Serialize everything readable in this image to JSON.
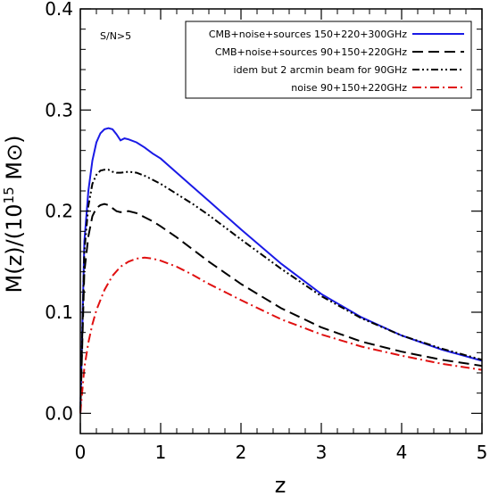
{
  "chart_data": {
    "type": "line",
    "xlabel": "z",
    "ylabel": "M(z)/(10",
    "ylabel_exp": "15",
    "ylabel_unit": " M⊙)",
    "annotation": "S/N>5",
    "xlim": [
      0,
      5
    ],
    "ylim": [
      -0.02,
      0.4
    ],
    "xticks": [
      0,
      1,
      2,
      3,
      4,
      5
    ],
    "xtick_labels": [
      "0",
      "1",
      "2",
      "3",
      "4",
      "5"
    ],
    "yticks": [
      0.0,
      0.1,
      0.2,
      0.3,
      0.4
    ],
    "ytick_labels": [
      "0.0",
      "0.1",
      "0.2",
      "0.3",
      "0.4"
    ],
    "grid": false,
    "legend_position": "top-right",
    "series": [
      {
        "name": "CMB+noise+sources 150+220+300GHz",
        "color": "#1a1ae6",
        "dash": "solid",
        "x": [
          0.0,
          0.05,
          0.1,
          0.15,
          0.2,
          0.25,
          0.3,
          0.35,
          0.4,
          0.45,
          0.5,
          0.55,
          0.6,
          0.7,
          0.8,
          0.9,
          1.0,
          1.2,
          1.4,
          1.6,
          1.8,
          2.0,
          2.5,
          3.0,
          3.5,
          4.0,
          4.5,
          5.0
        ],
        "y": [
          0.0,
          0.17,
          0.22,
          0.25,
          0.268,
          0.277,
          0.281,
          0.282,
          0.281,
          0.276,
          0.27,
          0.272,
          0.271,
          0.268,
          0.263,
          0.257,
          0.252,
          0.238,
          0.224,
          0.21,
          0.196,
          0.182,
          0.148,
          0.118,
          0.095,
          0.077,
          0.063,
          0.052
        ]
      },
      {
        "name": "CMB+noise+sources 90+150+220GHz",
        "color": "#000000",
        "dash": "dashed",
        "x": [
          0.0,
          0.05,
          0.1,
          0.15,
          0.2,
          0.25,
          0.3,
          0.35,
          0.4,
          0.45,
          0.5,
          0.6,
          0.7,
          0.8,
          0.9,
          1.0,
          1.2,
          1.4,
          1.6,
          1.8,
          2.0,
          2.5,
          3.0,
          3.5,
          4.0,
          4.5,
          5.0
        ],
        "y": [
          0.0,
          0.14,
          0.175,
          0.195,
          0.203,
          0.206,
          0.207,
          0.206,
          0.203,
          0.2,
          0.199,
          0.2,
          0.198,
          0.194,
          0.19,
          0.185,
          0.174,
          0.162,
          0.15,
          0.139,
          0.128,
          0.104,
          0.085,
          0.071,
          0.061,
          0.053,
          0.047
        ]
      },
      {
        "name": "idem but 2 arcmin beam for 90GHz",
        "color": "#000000",
        "dash": "dash-dot-dot",
        "x": [
          0.0,
          0.05,
          0.1,
          0.15,
          0.2,
          0.25,
          0.3,
          0.35,
          0.4,
          0.45,
          0.5,
          0.6,
          0.7,
          0.8,
          0.9,
          1.0,
          1.2,
          1.4,
          1.6,
          1.8,
          2.0,
          2.5,
          3.0,
          3.5,
          4.0,
          4.5,
          5.0
        ],
        "y": [
          0.0,
          0.16,
          0.205,
          0.227,
          0.236,
          0.24,
          0.241,
          0.241,
          0.239,
          0.238,
          0.238,
          0.239,
          0.238,
          0.235,
          0.231,
          0.227,
          0.217,
          0.207,
          0.196,
          0.184,
          0.172,
          0.143,
          0.116,
          0.094,
          0.077,
          0.064,
          0.053
        ]
      },
      {
        "name": "noise 90+150+220GHz",
        "color": "#e01010",
        "dash": "dash-dot",
        "x": [
          0.0,
          0.05,
          0.1,
          0.15,
          0.2,
          0.3,
          0.4,
          0.5,
          0.6,
          0.7,
          0.8,
          0.9,
          1.0,
          1.2,
          1.4,
          1.6,
          1.8,
          2.0,
          2.5,
          3.0,
          3.5,
          4.0,
          4.5,
          5.0
        ],
        "y": [
          0.0,
          0.045,
          0.07,
          0.088,
          0.102,
          0.122,
          0.136,
          0.145,
          0.15,
          0.153,
          0.154,
          0.153,
          0.151,
          0.145,
          0.137,
          0.128,
          0.12,
          0.112,
          0.093,
          0.078,
          0.066,
          0.057,
          0.049,
          0.043
        ]
      }
    ]
  }
}
